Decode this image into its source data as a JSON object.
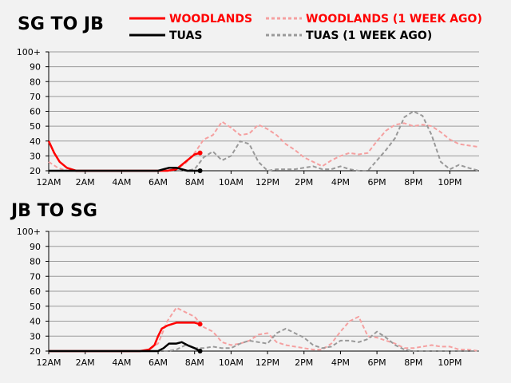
{
  "legend": [
    {
      "label": "WOODLANDS",
      "color": "#ff0000",
      "dashed": false
    },
    {
      "label": "WOODLANDS (1 WEEK AGO)",
      "color": "#f5a0a0",
      "dashed": true
    },
    {
      "label": "TUAS",
      "color": "#000000",
      "dashed": false
    },
    {
      "label": "TUAS (1 WEEK AGO)",
      "color": "#999999",
      "dashed": true
    }
  ],
  "chart_data": [
    {
      "type": "line",
      "title": "SG TO JB",
      "y_ticks": [
        "20",
        "30",
        "40",
        "50",
        "60",
        "70",
        "80",
        "90",
        "100+"
      ],
      "x_ticks": [
        "12AM",
        "2AM",
        "4AM",
        "6AM",
        "8AM",
        "10AM",
        "12PM",
        "2PM",
        "4PM",
        "6PM",
        "8PM",
        "10PM"
      ],
      "x_unit": "hour",
      "xlim": [
        0,
        23.6
      ],
      "ylim": [
        20,
        100
      ],
      "series": [
        {
          "name": "WOODLANDS (1 WEEK AGO)",
          "color": "#f5a0a0",
          "dashed": true,
          "x": [
            0,
            0.5,
            1,
            1.5,
            2,
            3,
            4,
            5,
            6,
            6.5,
            7,
            7.5,
            8,
            8.5,
            9,
            9.5,
            10,
            10.5,
            11,
            11.5,
            12,
            12.5,
            13,
            13.5,
            14,
            14.5,
            15,
            15.5,
            16,
            16.5,
            17,
            17.5,
            18,
            18.5,
            19,
            19.5,
            20,
            20.5,
            21,
            21.5,
            22,
            22.5,
            23,
            23.6
          ],
          "y": [
            26,
            22,
            20,
            20,
            20,
            20,
            20,
            20,
            20,
            20,
            21,
            25,
            32,
            41,
            44,
            53,
            49,
            44,
            45,
            51,
            48,
            44,
            38,
            34,
            29,
            26,
            23,
            27,
            30,
            32,
            31,
            32,
            40,
            47,
            51,
            52,
            50,
            51,
            50,
            46,
            41,
            38,
            37,
            36
          ]
        },
        {
          "name": "TUAS (1 WEEK AGO)",
          "color": "#999999",
          "dashed": true,
          "x": [
            0,
            1,
            2,
            3,
            4,
            5,
            6,
            6.5,
            7,
            7.5,
            8,
            8.5,
            9,
            9.5,
            10,
            10.5,
            11,
            11.5,
            12,
            12.5,
            13,
            13.5,
            14,
            14.5,
            15,
            15.5,
            16,
            16.5,
            17,
            17.5,
            18,
            18.5,
            19,
            19.5,
            20,
            20.5,
            21,
            21.5,
            22,
            22.5,
            23,
            23.6
          ],
          "y": [
            20,
            20,
            20,
            20,
            20,
            20,
            20,
            20,
            20,
            20,
            21,
            29,
            33,
            27,
            30,
            40,
            38,
            26,
            20,
            21,
            21,
            21,
            22,
            23,
            21,
            21,
            23,
            21,
            20,
            20,
            27,
            34,
            42,
            56,
            60,
            57,
            44,
            26,
            21,
            24,
            22,
            20
          ]
        },
        {
          "name": "WOODLANDS",
          "color": "#ff0000",
          "dashed": false,
          "x": [
            0,
            0.3,
            0.6,
            1,
            1.5,
            2,
            3,
            4,
            5,
            6,
            6.5,
            7,
            7.5,
            8,
            8.3
          ],
          "y": [
            40,
            32,
            26,
            22,
            20,
            20,
            20,
            20,
            20,
            20,
            20,
            21,
            26,
            31,
            32
          ],
          "end_dot": true
        },
        {
          "name": "TUAS",
          "color": "#000000",
          "dashed": false,
          "x": [
            0,
            1,
            2,
            3,
            4,
            5,
            6,
            6.3,
            6.6,
            7,
            7.3,
            7.6,
            8,
            8.3
          ],
          "y": [
            20,
            20,
            20,
            20,
            20,
            20,
            20,
            21,
            22,
            22,
            21,
            20,
            20,
            20
          ],
          "end_dot": true
        }
      ]
    },
    {
      "type": "line",
      "title": "JB TO SG",
      "y_ticks": [
        "20",
        "30",
        "40",
        "50",
        "60",
        "70",
        "80",
        "90",
        "100+"
      ],
      "x_ticks": [
        "12AM",
        "2AM",
        "4AM",
        "6AM",
        "8AM",
        "10AM",
        "12PM",
        "2PM",
        "4PM",
        "6PM",
        "8PM",
        "10PM"
      ],
      "x_unit": "hour",
      "xlim": [
        0,
        23.6
      ],
      "ylim": [
        20,
        100
      ],
      "series": [
        {
          "name": "WOODLANDS (1 WEEK AGO)",
          "color": "#f5a0a0",
          "dashed": true,
          "x": [
            0,
            1,
            2,
            3,
            4,
            5,
            5.5,
            6,
            6.5,
            7,
            7.5,
            8,
            8.5,
            9,
            9.5,
            10,
            10.5,
            11,
            11.5,
            12,
            12.5,
            13,
            13.5,
            14,
            14.5,
            15,
            15.5,
            16,
            16.5,
            17,
            17.5,
            18,
            18.5,
            19,
            19.5,
            20,
            20.5,
            21,
            21.5,
            22,
            22.5,
            23,
            23.6
          ],
          "y": [
            20,
            20,
            20,
            20,
            20,
            20,
            21,
            25,
            40,
            49,
            46,
            43,
            36,
            33,
            26,
            24,
            25,
            27,
            31,
            32,
            26,
            24,
            23,
            22,
            21,
            21,
            25,
            33,
            40,
            43,
            30,
            29,
            27,
            25,
            22,
            22,
            23,
            24,
            23,
            23,
            21,
            21,
            20
          ]
        },
        {
          "name": "TUAS (1 WEEK AGO)",
          "color": "#999999",
          "dashed": true,
          "x": [
            0,
            1,
            2,
            3,
            4,
            5,
            6,
            6.5,
            7,
            7.5,
            8,
            8.5,
            9,
            9.5,
            10,
            10.5,
            11,
            11.5,
            12,
            12.5,
            13,
            13.5,
            14,
            14.5,
            15,
            15.5,
            16,
            16.5,
            17,
            17.5,
            18,
            18.5,
            19,
            19.5,
            20,
            21,
            22,
            23,
            23.6
          ],
          "y": [
            20,
            20,
            20,
            20,
            20,
            20,
            20,
            20,
            21,
            24,
            22,
            22,
            23,
            22,
            22,
            25,
            27,
            26,
            25,
            32,
            35,
            32,
            29,
            24,
            22,
            23,
            27,
            27,
            26,
            28,
            33,
            29,
            24,
            21,
            20,
            20,
            20,
            20,
            20
          ]
        },
        {
          "name": "WOODLANDS",
          "color": "#ff0000",
          "dashed": false,
          "x": [
            0,
            1,
            2,
            3,
            4,
            5,
            5.5,
            5.8,
            6,
            6.2,
            6.5,
            7,
            7.5,
            8,
            8.3
          ],
          "y": [
            20,
            20,
            20,
            20,
            20,
            20,
            21,
            24,
            30,
            35,
            37,
            39,
            39,
            39,
            38
          ],
          "end_dot": true
        },
        {
          "name": "TUAS",
          "color": "#000000",
          "dashed": false,
          "x": [
            0,
            1,
            2,
            3,
            4,
            5,
            6,
            6.3,
            6.6,
            7,
            7.3,
            7.6,
            8,
            8.3
          ],
          "y": [
            20,
            20,
            20,
            20,
            20,
            20,
            20,
            22,
            25,
            25,
            26,
            24,
            22,
            20
          ],
          "end_dot": true
        }
      ]
    }
  ]
}
